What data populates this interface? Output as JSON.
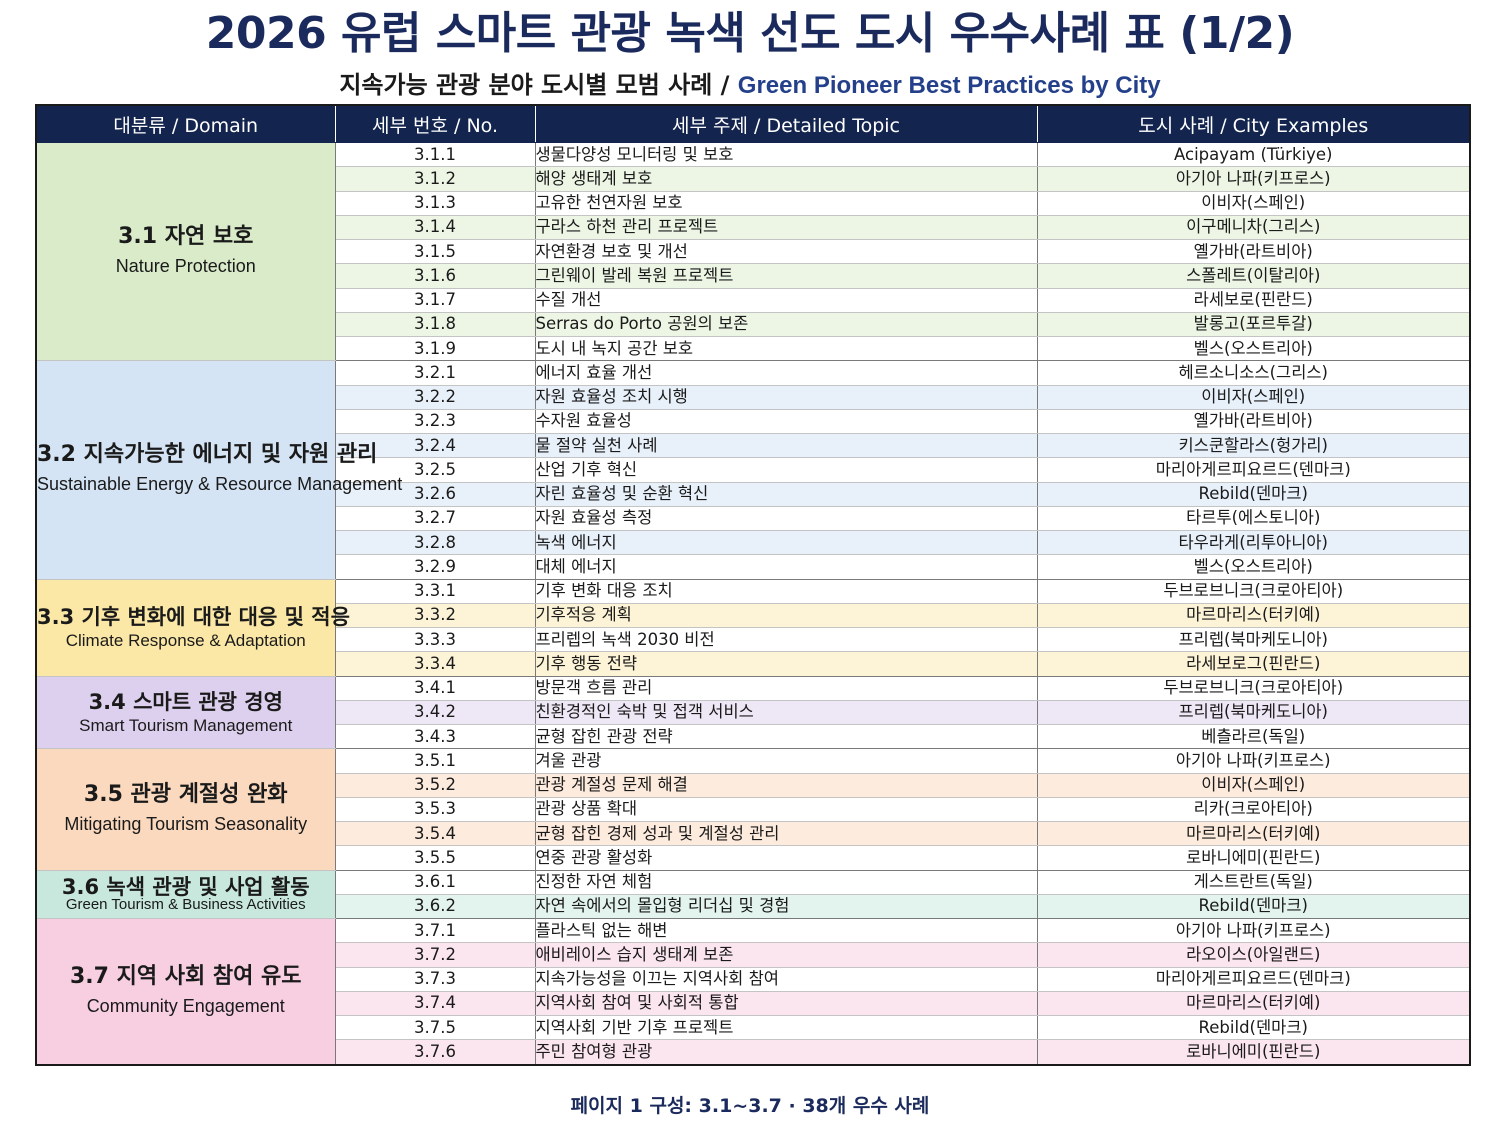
{
  "title": "2026 유럽 스마트 관광 녹색 선도 도시 우수사례 표 (1/2)",
  "subtitle_ko": "지속가능 관광 분야 도시별 모범 사례 /",
  "subtitle_en": "Green Pioneer Best Practices by City",
  "headers": {
    "domain": "대분류 / Domain",
    "no": "세부 번호 / No.",
    "topic": "세부 주제 / Detailed Topic",
    "city": "도시 사례 / City Examples"
  },
  "groups": [
    {
      "ko": "3.1 자연 보호",
      "en": "Nature Protection",
      "domain_color": "#d9ebc9",
      "row_colors": [
        "#ffffff",
        "#edf6e5"
      ],
      "rows": [
        {
          "no": "3.1.1",
          "topic": "생물다양성 모니터링 및 보호",
          "city": "Acipayam (Türkiye)"
        },
        {
          "no": "3.1.2",
          "topic": "해양 생태계 보호",
          "city": "아기아 나파(키프로스)"
        },
        {
          "no": "3.1.3",
          "topic": "고유한 천연자원 보호",
          "city": "이비자(스페인)"
        },
        {
          "no": "3.1.4",
          "topic": "구라스 하천 관리 프로젝트",
          "city": "이구메니차(그리스)"
        },
        {
          "no": "3.1.5",
          "topic": "자연환경 보호 및 개선",
          "city": "옐가바(라트비아)"
        },
        {
          "no": "3.1.6",
          "topic": "그린웨이 발레 복원 프로젝트",
          "city": "스폴레트(이탈리아)"
        },
        {
          "no": "3.1.7",
          "topic": "수질 개선",
          "city": "라세보로(핀란드)"
        },
        {
          "no": "3.1.8",
          "topic": "Serras do Porto 공원의 보존",
          "city": "발롱고(포르투갈)"
        },
        {
          "no": "3.1.9",
          "topic": "도시 내 녹지 공간 보호",
          "city": "벨스(오스트리아)"
        }
      ]
    },
    {
      "ko": "3.2 지속가능한 에너지 및 자원 관리",
      "en": "Sustainable Energy & Resource Management",
      "domain_color": "#d4e4f5",
      "row_colors": [
        "#ffffff",
        "#e8f0fa"
      ],
      "rows": [
        {
          "no": "3.2.1",
          "topic": "에너지 효율 개선",
          "city": "헤르소니소스(그리스)"
        },
        {
          "no": "3.2.2",
          "topic": "자원 효율성 조치 시행",
          "city": "이비자(스페인)"
        },
        {
          "no": "3.2.3",
          "topic": "수자원 효율성",
          "city": "옐가바(라트비아)"
        },
        {
          "no": "3.2.4",
          "topic": "물 절약 실천 사례",
          "city": "키스쿤할라스(헝가리)"
        },
        {
          "no": "3.2.5",
          "topic": "산업 기후 혁신",
          "city": "마리아게르피요르드(덴마크)"
        },
        {
          "no": "3.2.6",
          "topic": "자린 효율성 및 순환 혁신",
          "city": "Rebild(덴마크)"
        },
        {
          "no": "3.2.7",
          "topic": "자원 효율성 측정",
          "city": "타르투(에스토니아)"
        },
        {
          "no": "3.2.8",
          "topic": "녹색 에너지",
          "city": "타우라게(리투아니아)"
        },
        {
          "no": "3.2.9",
          "topic": "대체 에너지",
          "city": "벨스(오스트리아)"
        }
      ]
    },
    {
      "ko": "3.3 기후 변화에 대한 대응 및 적응",
      "en": "Climate Response & Adaptation",
      "domain_color": "#fbe8a6",
      "row_colors": [
        "#ffffff",
        "#fdf4d8"
      ],
      "rows": [
        {
          "no": "3.3.1",
          "topic": "기후 변화 대응 조치",
          "city": "두브로브니크(크로아티아)"
        },
        {
          "no": "3.3.2",
          "topic": "기후적응 계획",
          "city": "마르마리스(터키예)"
        },
        {
          "no": "3.3.3",
          "topic": "프리렙의 녹색 2030 비전",
          "city": "프리렙(북마케도니아)"
        },
        {
          "no": "3.3.4",
          "topic": "기후 행동 전략",
          "city": "라세보로그(핀란드)"
        }
      ]
    },
    {
      "ko": "3.4 스마트 관광 경영",
      "en": "Smart Tourism Management",
      "domain_color": "#ddd0ee",
      "row_colors": [
        "#ffffff",
        "#eee7f6"
      ],
      "rows": [
        {
          "no": "3.4.1",
          "topic": "방문객 흐름 관리",
          "city": "두브로브니크(크로아티아)"
        },
        {
          "no": "3.4.2",
          "topic": "친환경적인 숙박 및 접객 서비스",
          "city": "프리렙(북마케도니아)"
        },
        {
          "no": "3.4.3",
          "topic": "균형 잡힌 관광 전략",
          "city": "베츨라르(독일)"
        }
      ]
    },
    {
      "ko": "3.5 관광 계절성 완화",
      "en": "Mitigating Tourism Seasonality",
      "domain_color": "#fad9bf",
      "row_colors": [
        "#ffffff",
        "#fdebdd"
      ],
      "rows": [
        {
          "no": "3.5.1",
          "topic": "겨울 관광",
          "city": "아기아 나파(키프로스)"
        },
        {
          "no": "3.5.2",
          "topic": "관광 계절성 문제 해결",
          "city": "이비자(스페인)"
        },
        {
          "no": "3.5.3",
          "topic": "관광 상품 확대",
          "city": "리카(크로아티아)"
        },
        {
          "no": "3.5.4",
          "topic": "균형 잡힌 경제 성과 및 계절성 관리",
          "city": "마르마리스(터키예)"
        },
        {
          "no": "3.5.5",
          "topic": "연중 관광 활성화",
          "city": "로바니에미(핀란드)"
        }
      ]
    },
    {
      "ko": "3.6 녹색 관광 및 사업 활동",
      "en": "Green Tourism & Business Activities",
      "domain_color": "#c9e8dd",
      "row_colors": [
        "#ffffff",
        "#e3f3ed"
      ],
      "rows": [
        {
          "no": "3.6.1",
          "topic": "진정한 자연 체험",
          "city": "게스트란트(독일)"
        },
        {
          "no": "3.6.2",
          "topic": "자연 속에서의 몰입형 리더십 및 경험",
          "city": "Rebild(덴마크)"
        }
      ]
    },
    {
      "ko": "3.7 지역 사회 참여 유도",
      "en": "Community Engagement",
      "domain_color": "#f7cfe0",
      "row_colors": [
        "#ffffff",
        "#fbe5ee"
      ],
      "rows": [
        {
          "no": "3.7.1",
          "topic": "플라스틱 없는 해변",
          "city": "아기아 나파(키프로스)"
        },
        {
          "no": "3.7.2",
          "topic": "애비레이스 습지 생태계 보존",
          "city": "라오이스(아일랜드)"
        },
        {
          "no": "3.7.3",
          "topic": "지속가능성을 이끄는 지역사회 참여",
          "city": "마리아게르피요르드(덴마크)"
        },
        {
          "no": "3.7.4",
          "topic": "지역사회 참여 및 사회적 통합",
          "city": "마르마리스(터키예)"
        },
        {
          "no": "3.7.5",
          "topic": "지역사회 기반 기후 프로젝트",
          "city": "Rebild(덴마크)"
        },
        {
          "no": "3.7.6",
          "topic": "주민 참여형 관광",
          "city": "로바니에미(핀란드)"
        }
      ]
    }
  ],
  "footer": "페이지 1 구성: 3.1~3.7 · 38개 우수 사례"
}
